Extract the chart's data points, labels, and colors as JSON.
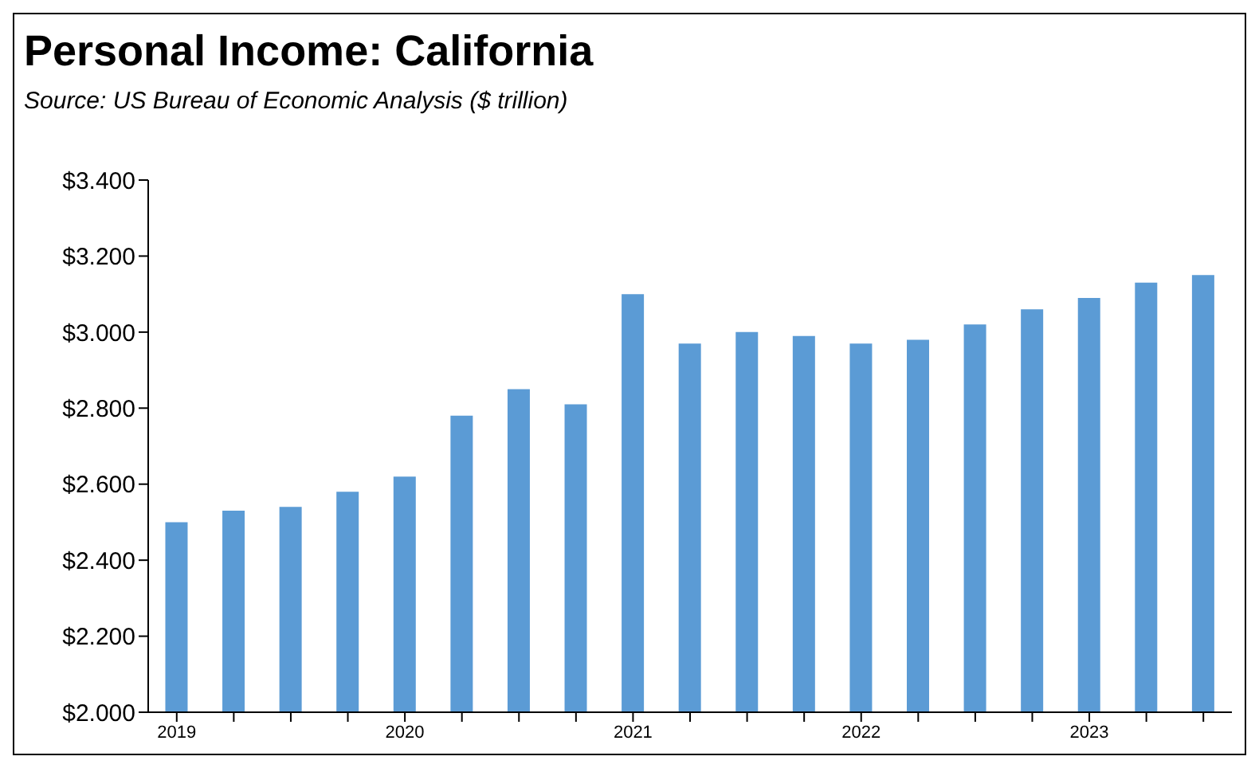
{
  "chart_data": {
    "type": "bar",
    "title": "Personal Income:  California",
    "subtitle": "Source:  US Bureau of Economic Analysis ($ trillion)",
    "categories": [
      "2019",
      null,
      null,
      null,
      "2020",
      null,
      null,
      null,
      "2021",
      null,
      null,
      null,
      "2022",
      null,
      null,
      null,
      "2023",
      null,
      null
    ],
    "values": [
      2.5,
      2.53,
      2.54,
      2.58,
      2.62,
      2.78,
      2.85,
      2.81,
      3.1,
      2.97,
      3.0,
      2.99,
      2.97,
      2.98,
      3.02,
      3.06,
      3.09,
      3.13,
      3.15
    ],
    "color": "#5b9bd5",
    "ylim": [
      2.0,
      3.4
    ],
    "yticks": [
      {
        "value": 2.0,
        "label": "$2.000"
      },
      {
        "value": 2.2,
        "label": "$2.200"
      },
      {
        "value": 2.4,
        "label": "$2.400"
      },
      {
        "value": 2.6,
        "label": "$2.600"
      },
      {
        "value": 2.8,
        "label": "$2.800"
      },
      {
        "value": 3.0,
        "label": "$3.000"
      },
      {
        "value": 3.2,
        "label": "$3.200"
      },
      {
        "value": 3.4,
        "label": "$3.400"
      }
    ],
    "grid": false,
    "legend": false
  }
}
